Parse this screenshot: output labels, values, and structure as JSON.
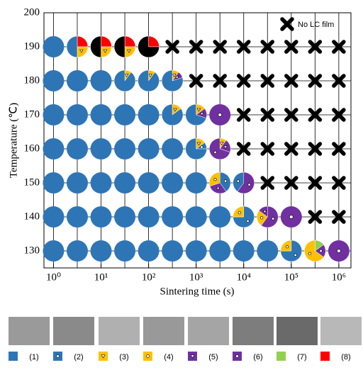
{
  "chart_data": {
    "type": "pie-grid",
    "y_label": "Temperature (℃)",
    "x_label": "Sintering time (s)",
    "x_log": true,
    "grid": true,
    "xlim": [
      0.63,
      1800000
    ],
    "xticks": [
      {
        "value": 1,
        "label": "10⁰"
      },
      {
        "value": 10,
        "label": "10¹"
      },
      {
        "value": 100,
        "label": "10²"
      },
      {
        "value": 1000,
        "label": "10³"
      },
      {
        "value": 10000,
        "label": "10⁴"
      },
      {
        "value": 100000,
        "label": "10⁵"
      },
      {
        "value": 1000000,
        "label": "10⁶"
      }
    ],
    "ylim": [
      125,
      200
    ],
    "yticks": [
      130,
      140,
      150,
      160,
      170,
      180,
      190,
      200
    ],
    "x": [
      1,
      3.162,
      10,
      31.62,
      100,
      316.2,
      1000,
      3162,
      10000,
      31623,
      100000,
      316228,
      1000000
    ],
    "types": [
      {
        "label": "(1)",
        "color": "#2e75b6",
        "glyph": "none"
      },
      {
        "label": "(2)",
        "color": "#2e75b6",
        "glyph": "circle"
      },
      {
        "label": "(3)",
        "color": "#ffc000",
        "glyph": "triangle"
      },
      {
        "label": "(4)",
        "color": "#ffc000",
        "glyph": "circle"
      },
      {
        "label": "(5)",
        "color": "#7030a0",
        "glyph": "triangle"
      },
      {
        "label": "(6)",
        "color": "#7030a0",
        "glyph": "circle"
      },
      {
        "label": "(7)",
        "color": "#92d050",
        "glyph": "none"
      },
      {
        "label": "(8)",
        "color": "#ff0000",
        "glyph": "none"
      },
      {
        "label": "No LC film",
        "color": "#000000",
        "glyph": "none"
      }
    ],
    "rows": [
      {
        "y": 190,
        "points": [
          [
            [
              0,
              100
            ]
          ],
          [
            [
              7,
              25
            ],
            [
              2,
              25
            ],
            [
              0,
              50
            ]
          ],
          [
            [
              7,
              25
            ],
            [
              2,
              25
            ],
            [
              8,
              50
            ]
          ],
          [
            [
              7,
              25
            ],
            [
              2,
              25
            ],
            [
              8,
              50
            ]
          ],
          [
            [
              7,
              25
            ],
            [
              8,
              75
            ]
          ],
          [
            [
              8,
              100
            ]
          ],
          [
            [
              8,
              100
            ]
          ],
          [
            [
              8,
              100
            ]
          ],
          [
            [
              8,
              100
            ]
          ],
          [
            [
              8,
              100
            ]
          ],
          [
            [
              8,
              100
            ]
          ],
          [
            [
              8,
              100
            ]
          ],
          [
            [
              8,
              100
            ]
          ]
        ]
      },
      {
        "y": 180,
        "points": [
          [
            [
              0,
              100
            ]
          ],
          [
            [
              0,
              100
            ]
          ],
          [
            [
              0,
              100
            ]
          ],
          [
            [
              2,
              10
            ],
            [
              0,
              90
            ]
          ],
          [
            [
              2,
              10
            ],
            [
              0,
              90
            ]
          ],
          [
            [
              2,
              10
            ],
            [
              4,
              10
            ],
            [
              0,
              80
            ]
          ],
          [
            [
              8,
              100
            ]
          ],
          [
            [
              8,
              100
            ]
          ],
          [
            [
              8,
              100
            ]
          ],
          [
            [
              8,
              100
            ]
          ],
          [
            [
              8,
              100
            ]
          ],
          [
            [
              8,
              100
            ]
          ],
          [
            [
              8,
              100
            ]
          ]
        ]
      },
      {
        "y": 170,
        "points": [
          [
            [
              0,
              100
            ]
          ],
          [
            [
              0,
              100
            ]
          ],
          [
            [
              0,
              100
            ]
          ],
          [
            [
              0,
              100
            ]
          ],
          [
            [
              0,
              100
            ]
          ],
          [
            [
              2,
              15
            ],
            [
              0,
              85
            ]
          ],
          [
            [
              2,
              15
            ],
            [
              4,
              15
            ],
            [
              0,
              70
            ]
          ],
          [
            [
              5,
              100
            ]
          ],
          [
            [
              8,
              100
            ]
          ],
          [
            [
              8,
              100
            ]
          ],
          [
            [
              8,
              100
            ]
          ],
          [
            [
              8,
              100
            ]
          ],
          [
            [
              8,
              100
            ]
          ]
        ]
      },
      {
        "y": 160,
        "points": [
          [
            [
              0,
              100
            ]
          ],
          [
            [
              0,
              100
            ]
          ],
          [
            [
              0,
              100
            ]
          ],
          [
            [
              0,
              100
            ]
          ],
          [
            [
              0,
              100
            ]
          ],
          [
            [
              0,
              100
            ]
          ],
          [
            [
              2,
              15
            ],
            [
              1,
              10
            ],
            [
              0,
              75
            ]
          ],
          [
            [
              2,
              10
            ],
            [
              4,
              20
            ],
            [
              5,
              70
            ]
          ],
          [
            [
              8,
              100
            ]
          ],
          [
            [
              8,
              100
            ]
          ],
          [
            [
              8,
              100
            ]
          ],
          [
            [
              8,
              100
            ]
          ],
          [
            [
              8,
              100
            ]
          ]
        ]
      },
      {
        "y": 150,
        "points": [
          [
            [
              0,
              100
            ]
          ],
          [
            [
              0,
              100
            ]
          ],
          [
            [
              0,
              100
            ]
          ],
          [
            [
              0,
              100
            ]
          ],
          [
            [
              0,
              100
            ]
          ],
          [
            [
              0,
              100
            ]
          ],
          [
            [
              0,
              100
            ]
          ],
          [
            [
              1,
              40
            ],
            [
              4,
              30
            ],
            [
              3,
              30
            ]
          ],
          [
            [
              5,
              60
            ],
            [
              1,
              40
            ]
          ],
          [
            [
              8,
              100
            ]
          ],
          [
            [
              8,
              100
            ]
          ],
          [
            [
              8,
              100
            ]
          ],
          [
            [
              8,
              100
            ]
          ]
        ]
      },
      {
        "y": 140,
        "points": [
          [
            [
              0,
              100
            ]
          ],
          [
            [
              0,
              100
            ]
          ],
          [
            [
              0,
              100
            ]
          ],
          [
            [
              0,
              100
            ]
          ],
          [
            [
              0,
              100
            ]
          ],
          [
            [
              0,
              100
            ]
          ],
          [
            [
              0,
              100
            ]
          ],
          [
            [
              0,
              100
            ]
          ],
          [
            [
              1,
              75
            ],
            [
              3,
              25
            ]
          ],
          [
            [
              5,
              60
            ],
            [
              3,
              25
            ],
            [
              4,
              15
            ]
          ],
          [
            [
              5,
              100
            ]
          ],
          [
            [
              8,
              100
            ]
          ],
          [
            [
              8,
              100
            ]
          ]
        ]
      },
      {
        "y": 130,
        "points": [
          [
            [
              0,
              100
            ]
          ],
          [
            [
              0,
              100
            ]
          ],
          [
            [
              0,
              100
            ]
          ],
          [
            [
              0,
              100
            ]
          ],
          [
            [
              0,
              100
            ]
          ],
          [
            [
              0,
              100
            ]
          ],
          [
            [
              0,
              100
            ]
          ],
          [
            [
              0,
              100
            ]
          ],
          [
            [
              0,
              100
            ]
          ],
          [
            [
              0,
              100
            ]
          ],
          [
            [
              1,
              75
            ],
            [
              3,
              25
            ]
          ],
          [
            [
              6,
              15
            ],
            [
              5,
              20
            ],
            [
              3,
              65
            ]
          ],
          [
            [
              5,
              100
            ]
          ]
        ]
      }
    ]
  }
}
